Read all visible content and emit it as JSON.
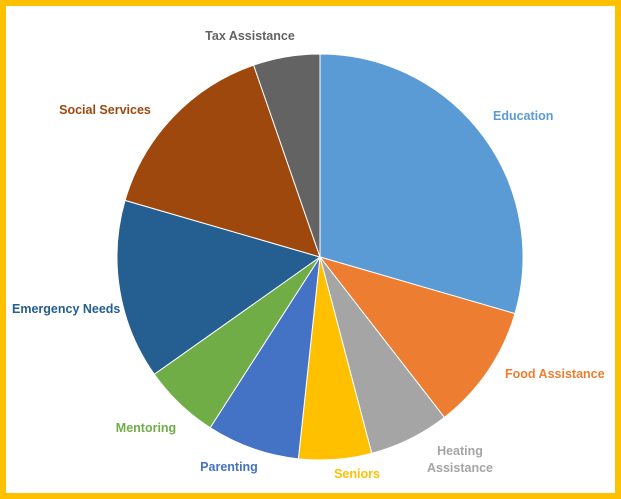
{
  "chart_data": {
    "type": "pie",
    "title": "",
    "slices": [
      {
        "label": "Education",
        "value": 29.5,
        "color": "#5B9BD5"
      },
      {
        "label": "Food Assistance",
        "value": 10.0,
        "color": "#ED7D31"
      },
      {
        "label": "Heating Assistance",
        "value": 6.4,
        "color": "#A5A5A5"
      },
      {
        "label": "Seniors",
        "value": 5.8,
        "color": "#FFC000"
      },
      {
        "label": "Parenting",
        "value": 7.4,
        "color": "#4472C4"
      },
      {
        "label": "Mentoring",
        "value": 6.1,
        "color": "#70AD47"
      },
      {
        "label": "Emergency Needs",
        "value": 14.3,
        "color": "#255E91"
      },
      {
        "label": "Social Services",
        "value": 15.2,
        "color": "#9E480E"
      },
      {
        "label": "Tax Assistance",
        "value": 5.3,
        "color": "#636363"
      }
    ],
    "legend": "none",
    "data_labels": "category names outside slices"
  }
}
